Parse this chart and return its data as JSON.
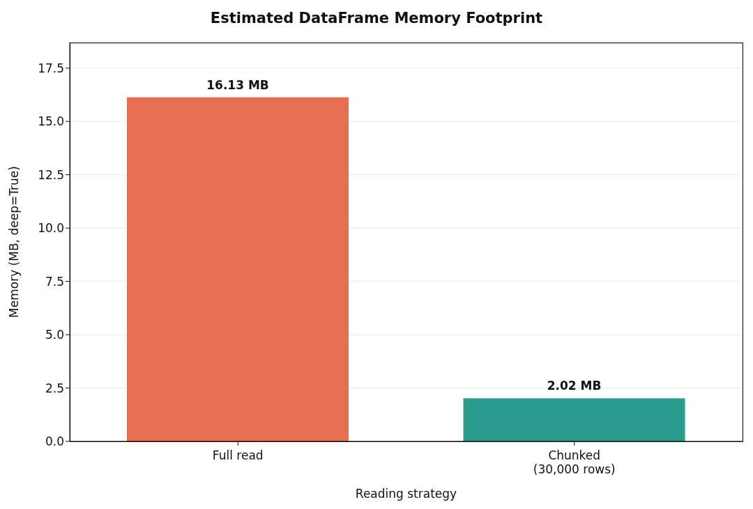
{
  "chart_data": {
    "type": "bar",
    "title": "Estimated DataFrame Memory Footprint",
    "xlabel": "Reading strategy",
    "ylabel": "Memory (MB, deep=True)",
    "categories": [
      "Full read",
      "Chunked\n(30,000 rows)"
    ],
    "values": [
      16.13,
      2.02
    ],
    "colors": [
      "#e76f51",
      "#2a9d8f"
    ],
    "value_labels": [
      "16.13 MB",
      "2.02 MB"
    ],
    "ylim": [
      0,
      18.7
    ],
    "yticks": [
      {
        "value": 0,
        "label": "0.0"
      },
      2.5,
      {
        "value": 5,
        "label": "5.0"
      },
      7.5,
      {
        "value": 10,
        "label": "10.0"
      },
      12.5,
      {
        "value": 15,
        "label": "15.0"
      },
      17.5
    ],
    "grid": "y"
  }
}
